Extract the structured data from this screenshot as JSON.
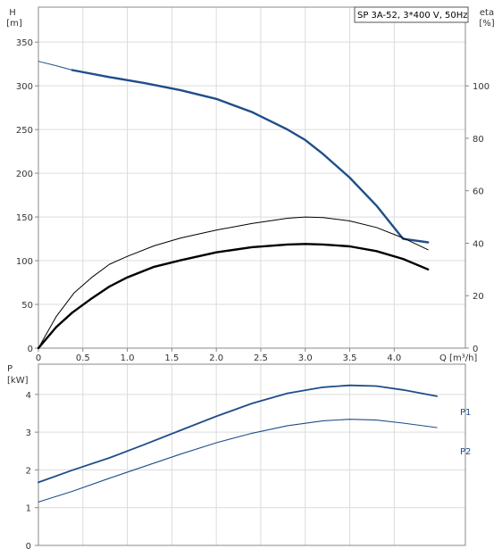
{
  "legend": {
    "text": "SP 3A-52, 3*400 V, 50Hz"
  },
  "colors": {
    "blue": "#1f4e89",
    "black": "#000000",
    "grid": "#dcdcdc",
    "frame": "#888888"
  },
  "chart_data": [
    {
      "type": "line",
      "title": "",
      "xlabel": "Q [m³/h]",
      "ylabel_left": "H\n[m]",
      "ylabel_right": "eta\n[%]",
      "xlim": [
        0,
        4.8
      ],
      "ylim_left": [
        0,
        390
      ],
      "ylim_right": [
        0,
        130
      ],
      "x_ticks": [
        "0",
        "0.5",
        "1.0",
        "1.5",
        "2.0",
        "2.5",
        "3.0",
        "3.5",
        "4.0"
      ],
      "x_tick_values": [
        0,
        0.5,
        1.0,
        1.5,
        2.0,
        2.5,
        3.0,
        3.5,
        4.0
      ],
      "y_ticks_left": [
        "0",
        "50",
        "100",
        "150",
        "200",
        "250",
        "300",
        "350"
      ],
      "y_tick_values_left": [
        0,
        50,
        100,
        150,
        200,
        250,
        300,
        350
      ],
      "y_ticks_right": [
        "0",
        "20",
        "40",
        "60",
        "80",
        "100"
      ],
      "y_tick_values_right": [
        0,
        20,
        40,
        60,
        80,
        100
      ],
      "grid": true,
      "series": [
        {
          "axis": "left",
          "color": "#1f4e89",
          "style": "thin",
          "x": [
            0,
            0.2,
            0.38
          ],
          "y": [
            328,
            323,
            318
          ]
        },
        {
          "axis": "left",
          "color": "#1f4e89",
          "style": "thick",
          "x": [
            0.38,
            0.8,
            1.2,
            1.6,
            2.0,
            2.4,
            2.8,
            3.0,
            3.2,
            3.5,
            3.8,
            4.1,
            4.38
          ],
          "y": [
            318,
            310,
            303,
            295,
            285,
            270,
            250,
            238,
            222,
            195,
            163,
            125,
            121
          ]
        },
        {
          "axis": "right",
          "color": "#000000",
          "style": "thin",
          "x": [
            0,
            0.2,
            0.4,
            0.6,
            0.8,
            1.0,
            1.3,
            1.6,
            2.0,
            2.4,
            2.8,
            3.0,
            3.2,
            3.5,
            3.8,
            4.1,
            4.38
          ],
          "y": [
            0,
            12,
            21,
            27,
            32,
            35,
            39,
            42,
            45,
            47.5,
            49.5,
            50,
            49.8,
            48.5,
            46,
            42,
            37.5
          ]
        },
        {
          "axis": "right",
          "color": "#000000",
          "style": "thick",
          "x": [
            0,
            0.2,
            0.38
          ],
          "y": [
            0,
            8,
            13.5
          ]
        },
        {
          "axis": "right",
          "color": "#000000",
          "style": "thick",
          "x": [
            0.38,
            0.6,
            0.8,
            1.0,
            1.3,
            1.6,
            2.0,
            2.4,
            2.8,
            3.0,
            3.2,
            3.5,
            3.8,
            4.1,
            4.38
          ],
          "y": [
            13.5,
            19,
            23.5,
            27,
            31,
            33.5,
            36.5,
            38.5,
            39.5,
            39.7,
            39.5,
            38.8,
            37,
            34,
            30
          ]
        }
      ]
    },
    {
      "type": "line",
      "title": "",
      "xlabel": "",
      "ylabel": "P\n[kW]",
      "xlim": [
        0,
        4.8
      ],
      "ylim": [
        0,
        4.8
      ],
      "y_ticks": [
        "0",
        "1",
        "2",
        "3",
        "4"
      ],
      "y_tick_values": [
        0,
        1,
        2,
        3,
        4
      ],
      "grid": true,
      "series": [
        {
          "name": "P1",
          "color": "#1f4e89",
          "x": [
            0,
            0.38,
            0.8,
            1.2,
            1.6,
            2.0,
            2.4,
            2.8,
            3.2,
            3.5,
            3.8,
            4.1,
            4.48
          ],
          "y": [
            1.67,
            1.99,
            2.32,
            2.68,
            3.05,
            3.42,
            3.76,
            4.03,
            4.19,
            4.24,
            4.22,
            4.12,
            3.95
          ]
        },
        {
          "name": "P2",
          "color": "#1f4e89",
          "x": [
            0,
            0.38,
            0.8,
            1.2,
            1.6,
            2.0,
            2.4,
            2.8,
            3.2,
            3.5,
            3.8,
            4.1,
            4.48
          ],
          "y": [
            1.15,
            1.43,
            1.78,
            2.1,
            2.42,
            2.72,
            2.97,
            3.17,
            3.3,
            3.34,
            3.32,
            3.24,
            3.12
          ]
        }
      ]
    }
  ]
}
